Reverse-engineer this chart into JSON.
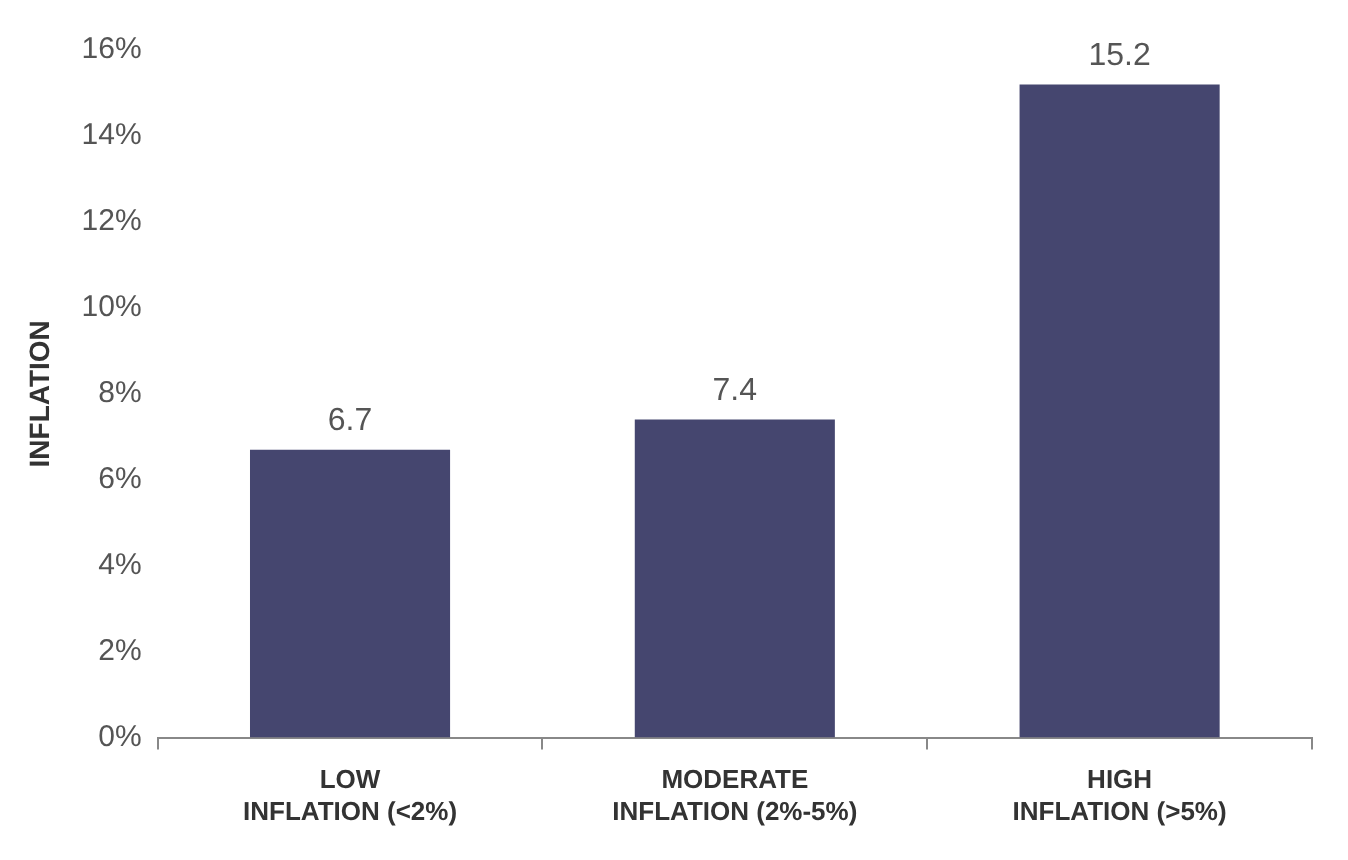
{
  "chart_data": {
    "type": "bar",
    "ylabel": "INFLATION",
    "categories": [
      "LOW\nINFLATION (<2%)",
      "MODERATE\nINFLATION (2%-5%)",
      "HIGH\nINFLATION (>5%)"
    ],
    "values": [
      6.7,
      7.4,
      15.2
    ],
    "color": "#45466f",
    "ylim": [
      0,
      16
    ],
    "yticks": [
      {
        "value": 0,
        "label": "0%"
      },
      {
        "value": 2,
        "label": "2%"
      },
      {
        "value": 4,
        "label": "4%"
      },
      {
        "value": 6,
        "label": "6%"
      },
      {
        "value": 8,
        "label": "8%"
      },
      {
        "value": 10,
        "label": "10%"
      },
      {
        "value": 12,
        "label": "12%"
      },
      {
        "value": 14,
        "label": "14%"
      },
      {
        "value": 16,
        "label": "16%"
      }
    ],
    "data_labels": true,
    "grid": false,
    "legend": false
  }
}
